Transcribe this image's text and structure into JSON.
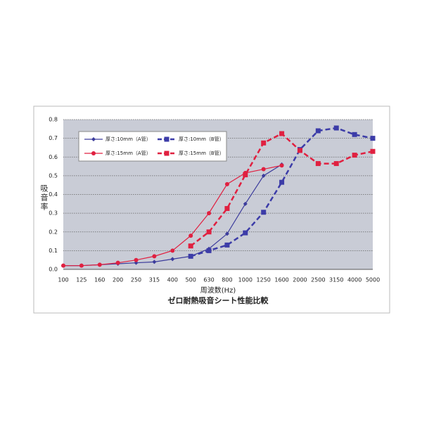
{
  "chart_data": {
    "type": "line",
    "title": "ゼロ耐熱吸音シート性能比較",
    "x_label": "周波数(Hz)",
    "y_label": "吸音率",
    "categories": [
      "100",
      "125",
      "160",
      "200",
      "250",
      "315",
      "400",
      "500",
      "630",
      "800",
      "1000",
      "1250",
      "1600",
      "2000",
      "2500",
      "3150",
      "4000",
      "5000"
    ],
    "series": [
      {
        "name": "厚さ:10mm（A管）",
        "color": "#3c3c9c",
        "line_style": "solid",
        "marker": "diamond",
        "values": [
          0.02,
          0.02,
          0.025,
          0.03,
          0.035,
          0.04,
          0.055,
          0.07,
          0.11,
          0.19,
          0.35,
          0.5,
          0.56,
          null,
          null,
          null,
          null,
          null
        ]
      },
      {
        "name": "厚さ:10mm（B管）",
        "color": "#3c3ca8",
        "line_style": "dashed",
        "marker": "square",
        "values": [
          null,
          null,
          null,
          null,
          null,
          null,
          null,
          0.07,
          0.1,
          0.13,
          0.195,
          0.305,
          0.465,
          0.64,
          0.74,
          0.755,
          0.72,
          0.7
        ]
      },
      {
        "name": "厚さ:15mm（A管）",
        "color": "#e02040",
        "line_style": "solid",
        "marker": "circle",
        "values": [
          0.02,
          0.02,
          0.025,
          0.035,
          0.05,
          0.07,
          0.1,
          0.18,
          0.3,
          0.455,
          0.515,
          0.535,
          0.555,
          null,
          null,
          null,
          null,
          null
        ]
      },
      {
        "name": "厚さ:15mm（B管）",
        "color": "#e02040",
        "line_style": "dashed",
        "marker": "square",
        "values": [
          null,
          null,
          null,
          null,
          null,
          null,
          null,
          0.125,
          0.2,
          0.325,
          0.505,
          0.675,
          0.725,
          0.635,
          0.565,
          0.565,
          0.61,
          0.63
        ]
      }
    ],
    "ylim": [
      0,
      0.8
    ],
    "yticks": [
      {
        "value": 0,
        "label": "0.0"
      },
      0.1,
      0.2,
      0.3,
      0.4,
      0.5,
      0.6,
      0.7,
      0.8
    ],
    "grid": true,
    "legend": "upper-left"
  }
}
